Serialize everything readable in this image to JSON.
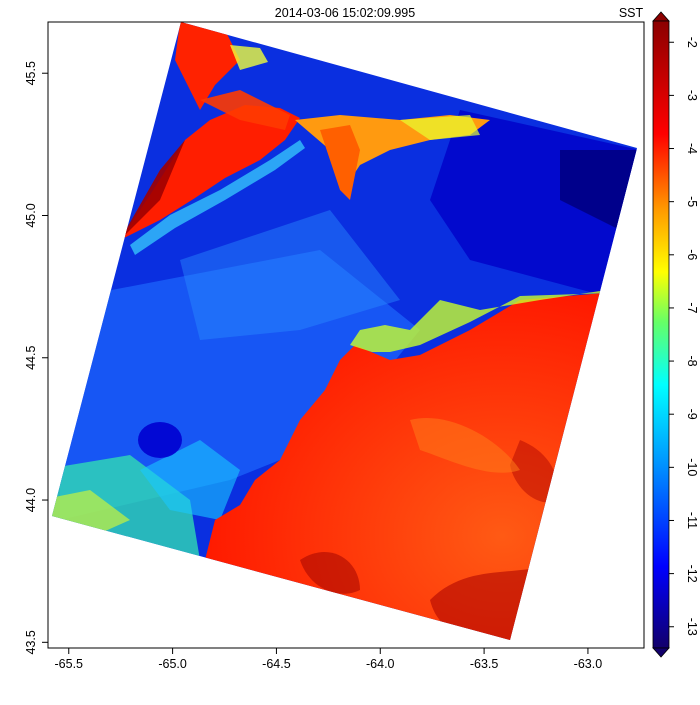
{
  "title": "2014-03-06 15:02:09.995",
  "colorbar_label": "SST",
  "palette": [
    "#12006b",
    "#0000ff",
    "#0099ff",
    "#00ffff",
    "#66ff66",
    "#ffff00",
    "#ff9900",
    "#ff0000",
    "#8b0000"
  ],
  "x_ticks": [
    {
      "value": -65.5,
      "label": "-65.5"
    },
    {
      "value": -65.0,
      "label": "-65.0"
    },
    {
      "value": -64.5,
      "label": "-64.5"
    },
    {
      "value": -64.0,
      "label": "-64.0"
    },
    {
      "value": -63.5,
      "label": "-63.5"
    },
    {
      "value": -63.0,
      "label": "-63.0"
    }
  ],
  "y_ticks": [
    {
      "value": 43.5,
      "label": "43.5"
    },
    {
      "value": 44.0,
      "label": "44.0"
    },
    {
      "value": 44.5,
      "label": "44.5"
    },
    {
      "value": 45.0,
      "label": "45.0"
    },
    {
      "value": 45.5,
      "label": "45.5"
    }
  ],
  "x_range": [
    -65.6,
    -62.73
  ],
  "y_range": [
    43.48,
    45.68
  ],
  "colorbar_ticks": [
    {
      "value": -2,
      "label": "-2"
    },
    {
      "value": -3,
      "label": "-3"
    },
    {
      "value": -4,
      "label": "-4"
    },
    {
      "value": -5,
      "label": "-5"
    },
    {
      "value": -6,
      "label": "-6"
    },
    {
      "value": -7,
      "label": "-7"
    },
    {
      "value": -8,
      "label": "-8"
    },
    {
      "value": -9,
      "label": "-9"
    },
    {
      "value": -10,
      "label": "-10"
    },
    {
      "value": -11,
      "label": "-11"
    },
    {
      "value": -12,
      "label": "-12"
    },
    {
      "value": -13,
      "label": "-13"
    }
  ],
  "colorbar_range": [
    -13.4,
    -1.6
  ]
}
